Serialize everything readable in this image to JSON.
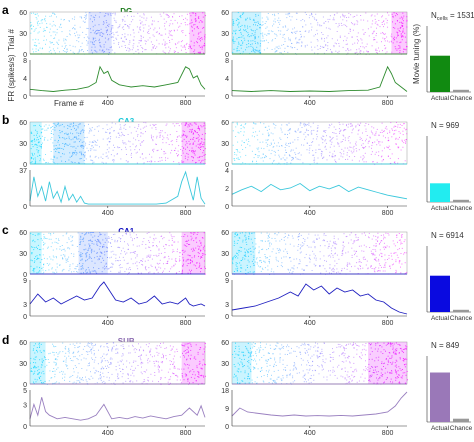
{
  "figure": {
    "raster_ylabel": "Trial #",
    "rate_ylabel": "FR (spikes/s)",
    "frame_xlabel": "Frame #",
    "bar_ylabel": "Movie tuning (%)",
    "bar_categories": [
      "Actual",
      "Chance"
    ]
  },
  "panels": [
    {
      "letter": "a",
      "region": "DG",
      "region_color": "#1a7a1a",
      "n_label": "N",
      "n_sub": "cells",
      "n_value": "= 1531",
      "count_text": ""
    },
    {
      "letter": "b",
      "region": "CA3",
      "region_color": "#1ec8d8",
      "n_label": "",
      "n_sub": "",
      "n_value": "",
      "count_text": "N = 969"
    },
    {
      "letter": "c",
      "region": "CA1",
      "region_color": "#1010c0",
      "n_label": "",
      "n_sub": "",
      "n_value": "",
      "count_text": "N = 6914"
    },
    {
      "letter": "d",
      "region": "SUB",
      "region_color": "#8a6ab0",
      "n_label": "",
      "n_sub": "",
      "n_value": "",
      "count_text": "N = 849"
    }
  ],
  "chart_data": [
    {
      "type": "scatter",
      "panel": "a-left-raster",
      "title": "DG",
      "ylabel": "Trial #",
      "xlim": [
        0,
        900
      ],
      "ylim": [
        0,
        60
      ],
      "yticks": [
        0,
        30,
        60
      ],
      "color_scale": [
        "#22e0ff",
        "#ff22ff"
      ],
      "dense_x_ranges": [
        [
          300,
          420
        ],
        [
          820,
          900
        ]
      ]
    },
    {
      "type": "line",
      "panel": "a-left-rate",
      "xlabel": "Frame #",
      "ylabel": "FR (spikes/s)",
      "xlim": [
        0,
        900
      ],
      "ylim": [
        0,
        8
      ],
      "yticks": [
        0,
        4,
        8
      ],
      "xticks": [
        400,
        800
      ],
      "color": "#2e8b2e",
      "x": [
        0,
        60,
        120,
        180,
        240,
        300,
        340,
        360,
        380,
        400,
        420,
        460,
        520,
        580,
        640,
        700,
        760,
        800,
        820,
        840,
        860,
        880,
        900
      ],
      "y": [
        1.5,
        1.2,
        1.0,
        1.3,
        1.5,
        2.0,
        3.0,
        6.5,
        5.0,
        5.5,
        3.5,
        2.5,
        2.0,
        2.3,
        2.0,
        2.5,
        3.0,
        6.5,
        6.0,
        4.0,
        4.5,
        2.5,
        1.5
      ]
    },
    {
      "type": "scatter",
      "panel": "a-right-raster",
      "xlim": [
        0,
        900
      ],
      "ylim": [
        0,
        60
      ],
      "yticks": [
        0,
        30,
        60
      ],
      "color_scale": [
        "#22e0ff",
        "#ff22ff"
      ],
      "dense_x_ranges": [
        [
          0,
          150
        ],
        [
          820,
          900
        ]
      ]
    },
    {
      "type": "line",
      "panel": "a-right-rate",
      "xlim": [
        0,
        900
      ],
      "ylim": [
        0,
        8
      ],
      "yticks": [
        0,
        4,
        8
      ],
      "xticks": [
        400,
        800
      ],
      "color": "#2e8b2e",
      "x": [
        0,
        100,
        200,
        300,
        400,
        500,
        600,
        700,
        760,
        800,
        820,
        840,
        870,
        900
      ],
      "y": [
        1.2,
        1.0,
        1.2,
        1.0,
        1.1,
        1.0,
        1.2,
        1.3,
        2.0,
        6.5,
        5.0,
        3.0,
        2.0,
        1.0
      ]
    },
    {
      "type": "bar",
      "panel": "a-bar",
      "categories": [
        "Actual",
        "Chance"
      ],
      "values": [
        33,
        2
      ],
      "ylabel": "Movie tuning (%)",
      "ylim": [
        0,
        60
      ],
      "color": "#118a11"
    },
    {
      "type": "scatter",
      "panel": "b-left-raster",
      "title": "CA3",
      "xlim": [
        0,
        900
      ],
      "ylim": [
        0,
        60
      ],
      "yticks": [
        0,
        30,
        60
      ],
      "color_scale": [
        "#22e0ff",
        "#ff22ff"
      ],
      "dense_x_ranges": [
        [
          0,
          60
        ],
        [
          120,
          280
        ],
        [
          780,
          900
        ]
      ]
    },
    {
      "type": "line",
      "panel": "b-left-rate",
      "xlim": [
        0,
        900
      ],
      "ylim": [
        0,
        37
      ],
      "yticks": [
        0,
        37
      ],
      "xticks": [
        400,
        800
      ],
      "color": "#3cc8dc",
      "x": [
        0,
        20,
        40,
        60,
        80,
        100,
        120,
        140,
        160,
        180,
        200,
        220,
        240,
        260,
        280,
        300,
        350,
        400,
        450,
        500,
        550,
        600,
        650,
        700,
        760,
        780,
        800,
        820,
        840,
        860,
        880,
        900
      ],
      "y": [
        5,
        30,
        10,
        20,
        5,
        25,
        8,
        15,
        4,
        20,
        6,
        12,
        4,
        10,
        3,
        2,
        2,
        2,
        2,
        2,
        2,
        2,
        2,
        3,
        10,
        25,
        35,
        20,
        6,
        30,
        8,
        2
      ]
    },
    {
      "type": "scatter",
      "panel": "b-right-raster",
      "xlim": [
        0,
        900
      ],
      "ylim": [
        0,
        60
      ],
      "yticks": [
        0,
        30,
        60
      ],
      "color_scale": [
        "#22e0ff",
        "#ff22ff"
      ],
      "dense_x_ranges": []
    },
    {
      "type": "line",
      "panel": "b-right-rate",
      "xlim": [
        0,
        900
      ],
      "ylim": [
        0,
        4
      ],
      "yticks": [
        0,
        2,
        4
      ],
      "xticks": [
        400,
        800
      ],
      "color": "#3cc8dc",
      "x": [
        0,
        50,
        100,
        150,
        200,
        250,
        300,
        350,
        400,
        450,
        500,
        550,
        600,
        650,
        700,
        750,
        800,
        850,
        900
      ],
      "y": [
        1.3,
        1.8,
        2.2,
        1.6,
        2.4,
        1.8,
        2.0,
        2.5,
        1.7,
        2.2,
        1.9,
        2.3,
        1.6,
        2.1,
        1.8,
        1.5,
        1.2,
        1.0,
        0.8
      ]
    },
    {
      "type": "bar",
      "panel": "b-bar",
      "categories": [
        "Actual",
        "Chance"
      ],
      "values": [
        17,
        2
      ],
      "ylim": [
        0,
        60
      ],
      "color": "#22ecf0"
    },
    {
      "type": "scatter",
      "panel": "c-left-raster",
      "title": "CA1",
      "xlim": [
        0,
        900
      ],
      "ylim": [
        0,
        60
      ],
      "yticks": [
        0,
        30,
        60
      ],
      "color_scale": [
        "#22e0ff",
        "#ff22ff"
      ],
      "dense_x_ranges": [
        [
          0,
          60
        ],
        [
          250,
          400
        ],
        [
          780,
          900
        ]
      ]
    },
    {
      "type": "line",
      "panel": "c-left-rate",
      "xlim": [
        0,
        900
      ],
      "ylim": [
        0,
        9
      ],
      "yticks": [
        0,
        3,
        9
      ],
      "xticks": [
        400,
        800
      ],
      "color": "#2020c0",
      "x": [
        0,
        40,
        80,
        120,
        160,
        200,
        240,
        280,
        320,
        360,
        380,
        400,
        440,
        480,
        520,
        560,
        600,
        640,
        680,
        720,
        760,
        800,
        820,
        840,
        880,
        900
      ],
      "y": [
        3.0,
        5.5,
        3.5,
        4.5,
        3.0,
        4.0,
        5.0,
        4.0,
        4.5,
        7.5,
        8.5,
        7.0,
        4.0,
        3.5,
        4.5,
        3.0,
        3.5,
        5.0,
        3.0,
        3.5,
        3.0,
        4.5,
        3.0,
        2.5,
        3.0,
        2.5
      ]
    },
    {
      "type": "scatter",
      "panel": "c-right-raster",
      "xlim": [
        0,
        900
      ],
      "ylim": [
        0,
        60
      ],
      "yticks": [
        0,
        30,
        60
      ],
      "color_scale": [
        "#22e0ff",
        "#ff22ff"
      ],
      "dense_x_ranges": [
        [
          0,
          120
        ]
      ]
    },
    {
      "type": "line",
      "panel": "c-right-rate",
      "xlim": [
        0,
        900
      ],
      "ylim": [
        0,
        9
      ],
      "yticks": [
        0,
        3,
        9
      ],
      "xticks": [
        400,
        800
      ],
      "color": "#2020c0",
      "x": [
        0,
        60,
        120,
        180,
        240,
        300,
        340,
        380,
        420,
        460,
        500,
        540,
        580,
        620,
        660,
        700,
        740,
        780,
        820,
        860,
        900
      ],
      "y": [
        1.5,
        2.0,
        2.5,
        3.5,
        4.5,
        6.0,
        5.0,
        8.0,
        6.5,
        7.5,
        5.5,
        7.0,
        6.0,
        6.5,
        5.0,
        5.5,
        4.0,
        3.5,
        2.0,
        1.0,
        0.5
      ]
    },
    {
      "type": "bar",
      "panel": "c-bar",
      "categories": [
        "Actual",
        "Chance"
      ],
      "values": [
        33,
        2
      ],
      "ylim": [
        0,
        60
      ],
      "color": "#0a0ae0"
    },
    {
      "type": "scatter",
      "panel": "d-left-raster",
      "title": "SUB",
      "xlim": [
        0,
        900
      ],
      "ylim": [
        0,
        60
      ],
      "yticks": [
        0,
        30,
        60
      ],
      "color_scale": [
        "#22e0ff",
        "#ff22ff"
      ],
      "dense_x_ranges": [
        [
          0,
          80
        ],
        [
          780,
          900
        ]
      ]
    },
    {
      "type": "line",
      "panel": "d-left-rate",
      "xlim": [
        0,
        900
      ],
      "ylim": [
        0,
        5
      ],
      "yticks": [
        0,
        3,
        5
      ],
      "xticks": [
        400,
        800
      ],
      "color": "#9a80c0",
      "x": [
        0,
        20,
        40,
        60,
        80,
        100,
        140,
        180,
        220,
        260,
        300,
        340,
        380,
        420,
        460,
        500,
        540,
        580,
        620,
        660,
        700,
        740,
        780,
        820,
        860,
        880,
        900
      ],
      "y": [
        1.0,
        3.0,
        1.5,
        4.0,
        2.0,
        1.5,
        1.0,
        1.2,
        1.0,
        0.8,
        1.0,
        1.5,
        3.0,
        1.0,
        1.2,
        1.0,
        1.3,
        1.1,
        1.4,
        1.2,
        1.0,
        1.3,
        1.5,
        2.5,
        1.5,
        2.8,
        1.2
      ]
    },
    {
      "type": "scatter",
      "panel": "d-right-raster",
      "xlim": [
        0,
        900
      ],
      "ylim": [
        0,
        60
      ],
      "yticks": [
        0,
        30,
        60
      ],
      "color_scale": [
        "#22e0ff",
        "#ff22ff"
      ],
      "dense_x_ranges": [
        [
          0,
          100
        ],
        [
          700,
          900
        ]
      ]
    },
    {
      "type": "line",
      "panel": "d-right-rate",
      "xlim": [
        0,
        900
      ],
      "ylim": [
        0,
        18
      ],
      "yticks": [
        0,
        9,
        18
      ],
      "xticks": [
        400,
        800
      ],
      "color": "#9a80c0",
      "x": [
        0,
        40,
        80,
        120,
        160,
        200,
        260,
        320,
        380,
        440,
        500,
        560,
        620,
        680,
        740,
        800,
        840,
        870,
        900
      ],
      "y": [
        5.0,
        9.0,
        7.0,
        6.5,
        6.0,
        5.5,
        5.0,
        5.5,
        5.0,
        5.2,
        5.0,
        5.3,
        5.0,
        5.5,
        6.0,
        7.0,
        10.0,
        14.0,
        17.0
      ]
    },
    {
      "type": "bar",
      "panel": "d-bar",
      "categories": [
        "Actual",
        "Chance"
      ],
      "values": [
        45,
        3
      ],
      "ylim": [
        0,
        60
      ],
      "color": "#9a78b8"
    }
  ]
}
